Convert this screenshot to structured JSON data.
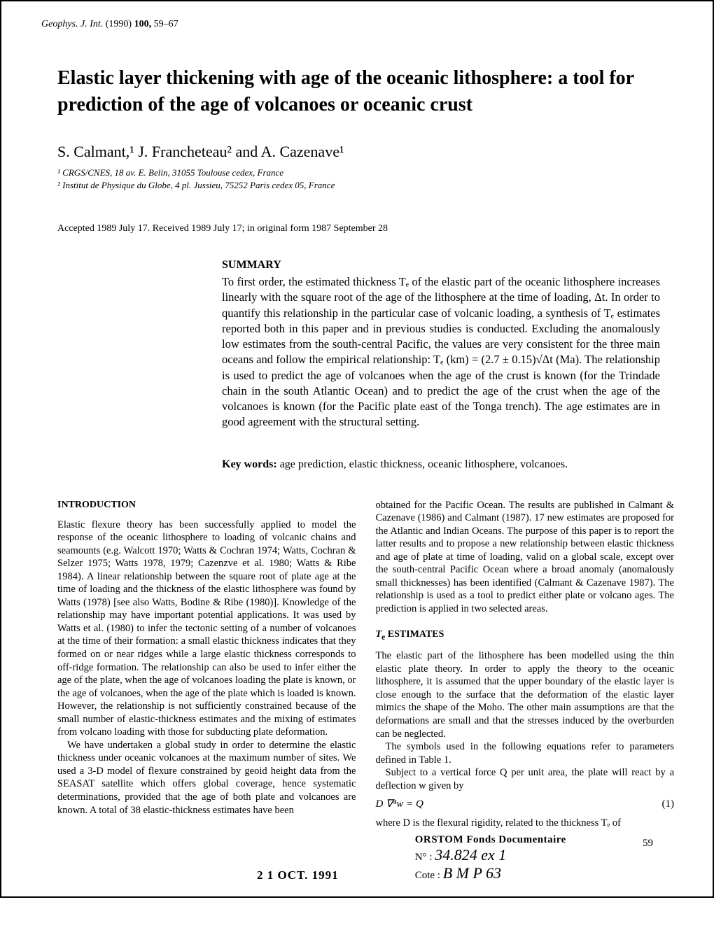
{
  "journal": {
    "prefix_note": "",
    "name": "Geophys. J. Int.",
    "year": "(1990)",
    "volume": "100,",
    "pages": "59–67"
  },
  "title": "Elastic layer thickening with age of the oceanic lithosphere: a tool for prediction of the age of volcanoes or oceanic crust",
  "authors_line": "S. Calmant,¹ J. Francheteau² and A. Cazenave¹",
  "affiliations": {
    "a1": "¹ CRGS/CNES, 18 av. E. Belin, 31055 Toulouse cedex, France",
    "a2": "² Institut de Physique du Globe, 4 pl. Jussieu, 75252 Paris cedex 05, France"
  },
  "dates": "Accepted 1989 July 17. Received 1989 July 17; in original form 1987 September 28",
  "summary": {
    "heading": "SUMMARY",
    "text": "To first order, the estimated thickness Tₑ of the elastic part of the oceanic lithosphere increases linearly with the square root of the age of the lithosphere at the time of loading, Δt. In order to quantify this relationship in the particular case of volcanic loading, a synthesis of Tₑ estimates reported both in this paper and in previous studies is conducted. Excluding the anomalously low estimates from the south-central Pacific, the values are very consistent for the three main oceans and follow the empirical relationship: Tₑ (km) = (2.7 ± 0.15)√Δt (Ma). The relationship is used to predict the age of volcanoes when the age of the crust is known (for the Trindade chain in the south Atlantic Ocean) and to predict the age of the crust when the age of the volcanoes is known (for the Pacific plate east of the Tonga trench). The age estimates are in good agreement with the structural setting."
  },
  "keywords": {
    "label": "Key words:",
    "text": " age prediction, elastic thickness, oceanic lithosphere, volcanoes."
  },
  "sections": {
    "intro_heading": "INTRODUCTION",
    "intro_p1": "Elastic flexure theory has been successfully applied to model the response of the oceanic lithosphere to loading of volcanic chains and seamounts (e.g. Walcott 1970; Watts & Cochran 1974; Watts, Cochran & Selzer 1975; Watts 1978, 1979; Cazenzve et al. 1980; Watts & Ribe 1984). A linear relationship between the square root of plate age at the time of loading and the thickness of the elastic lithosphere was found by Watts (1978) [see also Watts, Bodine & Ribe (1980)]. Knowledge of the relationship may have important potential applications. It was used by Watts et al. (1980) to infer the tectonic setting of a number of volcanoes at the time of their formation: a small elastic thickness indicates that they formed on or near ridges while a large elastic thickness corresponds to off-ridge formation. The relationship can also be used to infer either the age of the plate, when the age of volcanoes loading the plate is known, or the age of volcanoes, when the age of the plate which is loaded is known. However, the relationship is not sufficiently constrained because of the small number of elastic-thickness estimates and the mixing of estimates from volcano loading with those for subducting plate deformation.",
    "intro_p2": "We have undertaken a global study in order to determine the elastic thickness under oceanic volcanoes at the maximum number of sites. We used a 3-D model of flexure constrained by geoid height data from the SEASAT satellite which offers global coverage, hence systematic determinations, provided that the age of both plate and volcanoes are known. A total of 38 elastic-thickness estimates have been",
    "col2_p1": "obtained for the Pacific Ocean. The results are published in Calmant & Cazenave (1986) and Calmant (1987). 17 new estimates are proposed for the Atlantic and Indian Oceans. The purpose of this paper is to report the latter results and to propose a new relationship between elastic thickness and age of plate at time of loading, valid on a global scale, except over the south-central Pacific Ocean where a broad anomaly (anomalously small thicknesses) has been identified (Calmant & Cazenave 1987). The relationship is used as a tool to predict either plate or volcano ages. The prediction is applied in two selected areas.",
    "te_heading": "Tₑ ESTIMATES",
    "te_p1": "The elastic part of the lithosphere has been modelled using the thin elastic plate theory. In order to apply the theory to the oceanic lithosphere, it is assumed that the upper boundary of the elastic layer is close enough to the surface that the deformation of the elastic layer mimics the shape of the Moho. The other main assumptions are that the deformations are small and that the stresses induced by the overburden can be neglected.",
    "te_p2": "The symbols used in the following equations refer to parameters defined in Table 1.",
    "te_p3": "Subject to a vertical force Q per unit area, the plate will react by a deflection w given by",
    "equation": "D ∇⁴w = Q",
    "equation_num": "(1)",
    "te_p4": "where D is the flexural rigidity, related to the thickness Tₑ of"
  },
  "stamp": {
    "date": "2 1 OCT. 1991",
    "orstom": "ORSTOM Fonds Documentaire",
    "no_label": "N° :",
    "no_value": "34.824 ex 1",
    "cote_label": "Cote :",
    "cote_value": "B   M       P 63"
  },
  "page_number": "59"
}
